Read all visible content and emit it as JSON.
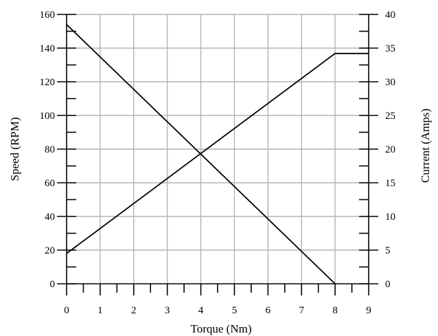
{
  "chart_data": {
    "type": "line",
    "title": "",
    "xlabel": "Torque (Nm)",
    "ylabel": "Speed (RPM)",
    "y2label": "Current (Amps)",
    "xlim": [
      0,
      9
    ],
    "ylim": [
      0,
      160
    ],
    "y2lim": [
      0,
      40
    ],
    "x_ticks": [
      "0",
      "1",
      "2",
      "3",
      "4",
      "5",
      "6",
      "7",
      "8",
      "9"
    ],
    "y_ticks": [
      "0",
      "20",
      "40",
      "60",
      "80",
      "100",
      "120",
      "140",
      "160"
    ],
    "y2_ticks": [
      "0",
      "5",
      "10",
      "15",
      "20",
      "25",
      "30",
      "35",
      "40"
    ],
    "grid": true,
    "series": [
      {
        "axis": "left",
        "points": [
          [
            0,
            154
          ],
          [
            8,
            0
          ]
        ]
      },
      {
        "axis": "right",
        "points": [
          [
            0,
            4.5
          ],
          [
            8,
            34.2
          ],
          [
            9,
            34.2
          ]
        ]
      }
    ],
    "line_color": "#000000",
    "grid_color": "#b3b3b3"
  }
}
